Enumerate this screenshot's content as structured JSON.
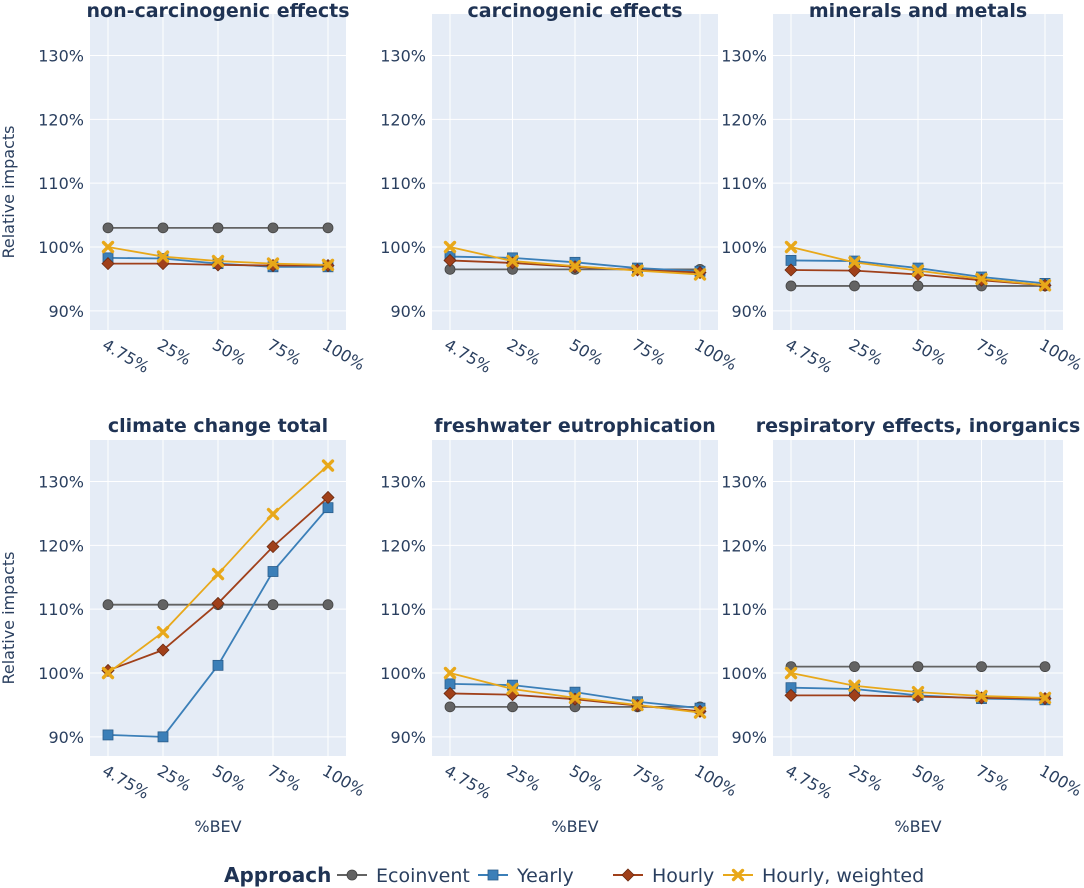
{
  "legend": {
    "title": "Approach",
    "items": [
      {
        "name": "Ecoinvent",
        "color": "#636363",
        "marker": "circle"
      },
      {
        "name": "Yearly",
        "color": "#3b7fb8",
        "marker": "square"
      },
      {
        "name": "Hourly",
        "color": "#a0401a",
        "marker": "diamond"
      },
      {
        "name": "Hourly, weighted",
        "color": "#e8a81a",
        "marker": "x"
      }
    ]
  },
  "chart_data": [
    {
      "type": "line",
      "title": "non-carcinogenic effects",
      "xlabel": "",
      "ylabel": "Relative impacts",
      "categories": [
        "4.75%",
        "25%",
        "50%",
        "75%",
        "100%"
      ],
      "yticks": [
        "90%",
        "100%",
        "110%",
        "120%",
        "130%"
      ],
      "ylim": [
        0.87,
        1.365
      ],
      "series": [
        {
          "name": "Ecoinvent",
          "values": [
            1.03,
            1.03,
            1.03,
            1.03,
            1.03
          ]
        },
        {
          "name": "Yearly",
          "values": [
            0.983,
            0.982,
            0.974,
            0.969,
            0.969
          ]
        },
        {
          "name": "Hourly",
          "values": [
            0.974,
            0.974,
            0.972,
            0.971,
            0.971
          ]
        },
        {
          "name": "Hourly, weighted",
          "values": [
            1.0,
            0.985,
            0.978,
            0.974,
            0.972
          ]
        }
      ]
    },
    {
      "type": "line",
      "title": "carcinogenic effects",
      "xlabel": "",
      "ylabel": "",
      "categories": [
        "4.75%",
        "25%",
        "50%",
        "75%",
        "100%"
      ],
      "yticks": [
        "90%",
        "100%",
        "110%",
        "120%",
        "130%"
      ],
      "ylim": [
        0.87,
        1.365
      ],
      "series": [
        {
          "name": "Ecoinvent",
          "values": [
            0.965,
            0.965,
            0.965,
            0.965,
            0.965
          ]
        },
        {
          "name": "Yearly",
          "values": [
            0.985,
            0.983,
            0.976,
            0.967,
            0.962
          ]
        },
        {
          "name": "Hourly",
          "values": [
            0.979,
            0.975,
            0.969,
            0.964,
            0.96
          ]
        },
        {
          "name": "Hourly, weighted",
          "values": [
            1.0,
            0.978,
            0.97,
            0.963,
            0.957
          ]
        }
      ]
    },
    {
      "type": "line",
      "title": "minerals and metals",
      "xlabel": "",
      "ylabel": "",
      "categories": [
        "4.75%",
        "25%",
        "50%",
        "75%",
        "100%"
      ],
      "yticks": [
        "90%",
        "100%",
        "110%",
        "120%",
        "130%"
      ],
      "ylim": [
        0.87,
        1.365
      ],
      "series": [
        {
          "name": "Ecoinvent",
          "values": [
            0.939,
            0.939,
            0.939,
            0.939,
            0.939
          ]
        },
        {
          "name": "Yearly",
          "values": [
            0.979,
            0.978,
            0.967,
            0.953,
            0.943
          ]
        },
        {
          "name": "Hourly",
          "values": [
            0.964,
            0.963,
            0.957,
            0.948,
            0.94
          ]
        },
        {
          "name": "Hourly, weighted",
          "values": [
            1.0,
            0.976,
            0.963,
            0.95,
            0.94
          ]
        }
      ]
    },
    {
      "type": "line",
      "title": "climate change total",
      "xlabel": "%BEV",
      "ylabel": "Relative impacts",
      "categories": [
        "4.75%",
        "25%",
        "50%",
        "75%",
        "100%"
      ],
      "yticks": [
        "90%",
        "100%",
        "110%",
        "120%",
        "130%"
      ],
      "ylim": [
        0.87,
        1.365
      ],
      "series": [
        {
          "name": "Ecoinvent",
          "values": [
            1.107,
            1.107,
            1.107,
            1.107,
            1.107
          ]
        },
        {
          "name": "Yearly",
          "values": [
            0.903,
            0.9,
            1.012,
            1.159,
            1.259
          ]
        },
        {
          "name": "Hourly",
          "values": [
            1.004,
            1.036,
            1.109,
            1.198,
            1.275
          ]
        },
        {
          "name": "Hourly, weighted",
          "values": [
            1.0,
            1.064,
            1.155,
            1.249,
            1.325
          ]
        }
      ]
    },
    {
      "type": "line",
      "title": "freshwater eutrophication",
      "xlabel": "%BEV",
      "ylabel": "",
      "categories": [
        "4.75%",
        "25%",
        "50%",
        "75%",
        "100%"
      ],
      "yticks": [
        "90%",
        "100%",
        "110%",
        "120%",
        "130%"
      ],
      "ylim": [
        0.87,
        1.365
      ],
      "series": [
        {
          "name": "Ecoinvent",
          "values": [
            0.947,
            0.947,
            0.947,
            0.947,
            0.947
          ]
        },
        {
          "name": "Yearly",
          "values": [
            0.983,
            0.981,
            0.97,
            0.955,
            0.945
          ]
        },
        {
          "name": "Hourly",
          "values": [
            0.968,
            0.966,
            0.959,
            0.949,
            0.94
          ]
        },
        {
          "name": "Hourly, weighted",
          "values": [
            1.0,
            0.975,
            0.961,
            0.95,
            0.938
          ]
        }
      ]
    },
    {
      "type": "line",
      "title": "respiratory effects, inorganics",
      "xlabel": "%BEV",
      "ylabel": "",
      "categories": [
        "4.75%",
        "25%",
        "50%",
        "75%",
        "100%"
      ],
      "yticks": [
        "90%",
        "100%",
        "110%",
        "120%",
        "130%"
      ],
      "ylim": [
        0.87,
        1.365
      ],
      "series": [
        {
          "name": "Ecoinvent",
          "values": [
            1.01,
            1.01,
            1.01,
            1.01,
            1.01
          ]
        },
        {
          "name": "Yearly",
          "values": [
            0.977,
            0.975,
            0.965,
            0.96,
            0.958
          ]
        },
        {
          "name": "Hourly",
          "values": [
            0.965,
            0.965,
            0.963,
            0.961,
            0.96
          ]
        },
        {
          "name": "Hourly, weighted",
          "values": [
            1.0,
            0.98,
            0.97,
            0.964,
            0.961
          ]
        }
      ]
    }
  ]
}
